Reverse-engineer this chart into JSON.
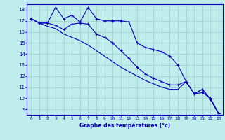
{
  "x": [
    0,
    1,
    2,
    3,
    4,
    5,
    6,
    7,
    8,
    9,
    10,
    11,
    12,
    13,
    14,
    15,
    16,
    17,
    18,
    19,
    20,
    21,
    22,
    23
  ],
  "line1": [
    17.2,
    16.8,
    16.8,
    18.2,
    17.2,
    17.5,
    16.9,
    18.2,
    17.2,
    17.0,
    17.0,
    17.0,
    16.9,
    15.0,
    14.6,
    14.4,
    14.2,
    13.8,
    13.0,
    11.5,
    10.4,
    10.8,
    9.9,
    8.6
  ],
  "line2": [
    17.2,
    16.8,
    16.8,
    16.6,
    16.2,
    16.7,
    16.8,
    16.7,
    15.8,
    15.5,
    15.0,
    14.3,
    13.6,
    12.8,
    12.2,
    11.8,
    11.5,
    11.2,
    11.2,
    11.5,
    10.4,
    10.5,
    10.0,
    8.6
  ],
  "line3": [
    17.2,
    16.8,
    16.5,
    16.3,
    15.8,
    15.5,
    15.2,
    14.8,
    14.3,
    13.8,
    13.3,
    12.8,
    12.4,
    12.0,
    11.6,
    11.3,
    11.0,
    10.8,
    10.8,
    11.5,
    10.4,
    10.8,
    9.9,
    8.6
  ],
  "xlim": [
    -0.5,
    23.5
  ],
  "ylim": [
    8.5,
    18.5
  ],
  "yticks": [
    9,
    10,
    11,
    12,
    13,
    14,
    15,
    16,
    17,
    18
  ],
  "xticks": [
    0,
    1,
    2,
    3,
    4,
    5,
    6,
    7,
    8,
    9,
    10,
    11,
    12,
    13,
    14,
    15,
    16,
    17,
    18,
    19,
    20,
    21,
    22,
    23
  ],
  "xlabel": "Graphe des températures (°c)",
  "line_color": "#0000bb",
  "bg_color": "#c0ecec",
  "grid_color": "#99cccc",
  "border_color": "#0000bb"
}
